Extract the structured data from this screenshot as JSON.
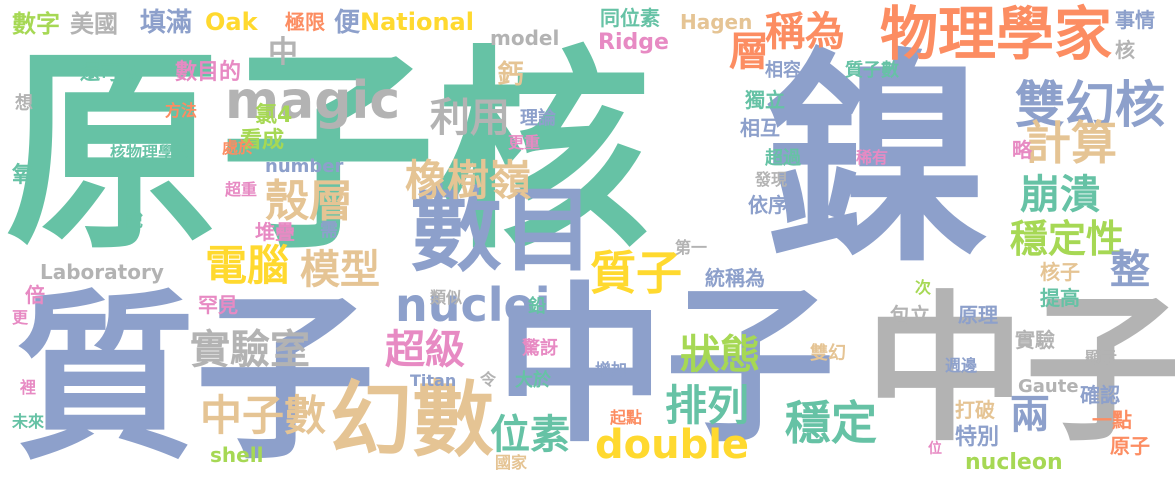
{
  "colors": {
    "green": "#66c2a5",
    "blue": "#8da0cb",
    "orange": "#fc8d62",
    "gray": "#b3b3b3",
    "tan": "#e5c494",
    "yellow": "#ffd92f",
    "pink": "#e78ac3",
    "lime": "#a6d854"
  },
  "words": [
    {
      "text": "原子核",
      "color": "#66c2a5"
    },
    {
      "text": "鎳",
      "color": "#8da0cb"
    },
    {
      "text": "質子",
      "color": "#8da0cb"
    },
    {
      "text": "中子",
      "color": "#8da0cb"
    },
    {
      "text": "中子",
      "color": "#b3b3b3"
    },
    {
      "text": "數目",
      "color": "#8da0cb"
    },
    {
      "text": "幻數",
      "color": "#e5c494"
    },
    {
      "text": "物理學家",
      "color": "#fc8d62"
    },
    {
      "text": "magic",
      "color": "#b3b3b3"
    },
    {
      "text": "雙幻核",
      "color": "#8da0cb"
    },
    {
      "text": "計算",
      "color": "#e5c494"
    },
    {
      "text": "橡樹嶺",
      "color": "#e5c494"
    },
    {
      "text": "利用",
      "color": "#b3b3b3"
    },
    {
      "text": "殼層",
      "color": "#e5c494"
    },
    {
      "text": "電腦",
      "color": "#ffd92f"
    },
    {
      "text": "模型",
      "color": "#e5c494"
    },
    {
      "text": "質子",
      "color": "#ffd92f"
    },
    {
      "text": "nuclei",
      "color": "#8da0cb"
    },
    {
      "text": "超級",
      "color": "#e78ac3"
    },
    {
      "text": "狀態",
      "color": "#a6d854"
    },
    {
      "text": "實驗室",
      "color": "#b3b3b3"
    },
    {
      "text": "中子數",
      "color": "#e5c494"
    },
    {
      "text": "排列",
      "color": "#66c2a5"
    },
    {
      "text": "穩定",
      "color": "#66c2a5"
    },
    {
      "text": "位素",
      "color": "#66c2a5"
    },
    {
      "text": "double",
      "color": "#ffd92f"
    },
    {
      "text": "崩潰",
      "color": "#66c2a5"
    },
    {
      "text": "穩定性",
      "color": "#a6d854"
    },
    {
      "text": "整",
      "color": "#8da0cb"
    },
    {
      "text": "兩",
      "color": "#8da0cb"
    },
    {
      "text": "稱為",
      "color": "#fc8d62"
    },
    {
      "text": "層",
      "color": "#fc8d62"
    },
    {
      "text": "中",
      "color": "#b3b3b3"
    },
    {
      "text": "數字",
      "color": "#a6d854"
    },
    {
      "text": "美國",
      "color": "#b3b3b3"
    },
    {
      "text": "填滿",
      "color": "#8da0cb"
    },
    {
      "text": "Oak",
      "color": "#ffd92f"
    },
    {
      "text": "極限",
      "color": "#fc8d62"
    },
    {
      "text": "便",
      "color": "#8da0cb"
    },
    {
      "text": "National",
      "color": "#ffd92f"
    },
    {
      "text": "model",
      "color": "#b3b3b3"
    },
    {
      "text": "同位素",
      "color": "#66c2a5"
    },
    {
      "text": "Hagen",
      "color": "#e5c494"
    },
    {
      "text": "Ridge",
      "color": "#e78ac3"
    },
    {
      "text": "事情",
      "color": "#8da0cb"
    },
    {
      "text": "核",
      "color": "#b3b3b3"
    },
    {
      "text": "還可以",
      "color": "#66c2a5"
    },
    {
      "text": "數目的",
      "color": "#e78ac3"
    },
    {
      "text": "鈣",
      "color": "#e5c494"
    },
    {
      "text": "相容",
      "color": "#8da0cb"
    },
    {
      "text": "質子數",
      "color": "#66c2a5"
    },
    {
      "text": "想",
      "color": "#b3b3b3"
    },
    {
      "text": "方法",
      "color": "#fc8d62"
    },
    {
      "text": "氯4",
      "color": "#a6d854"
    },
    {
      "text": "看成",
      "color": "#a6d854"
    },
    {
      "text": "理論",
      "color": "#8da0cb"
    },
    {
      "text": "獨立",
      "color": "#66c2a5"
    },
    {
      "text": "略",
      "color": "#e78ac3"
    },
    {
      "text": "核物理學家",
      "color": "#66c2a5"
    },
    {
      "text": "處於",
      "color": "#fc8d62"
    },
    {
      "text": "更重",
      "color": "#e78ac3"
    },
    {
      "text": "相互",
      "color": "#8da0cb"
    },
    {
      "text": "number",
      "color": "#8da0cb"
    },
    {
      "text": "超過",
      "color": "#66c2a5"
    },
    {
      "text": "稀有",
      "color": "#e78ac3"
    },
    {
      "text": "氧",
      "color": "#66c2a5"
    },
    {
      "text": "超重",
      "color": "#e78ac3"
    },
    {
      "text": "發現",
      "color": "#b3b3b3"
    },
    {
      "text": "說",
      "color": "#66c2a5"
    },
    {
      "text": "堆疊",
      "color": "#e78ac3"
    },
    {
      "text": "需",
      "color": "#8da0cb"
    },
    {
      "text": "依序",
      "color": "#8da0cb"
    },
    {
      "text": "第一",
      "color": "#b3b3b3"
    },
    {
      "text": "Laboratory",
      "color": "#b3b3b3"
    },
    {
      "text": "統稱為",
      "color": "#8da0cb"
    },
    {
      "text": "核子",
      "color": "#e5c494"
    },
    {
      "text": "倍",
      "color": "#e78ac3"
    },
    {
      "text": "罕見",
      "color": "#e78ac3"
    },
    {
      "text": "類似",
      "color": "#b3b3b3"
    },
    {
      "text": "鉛",
      "color": "#66c2a5"
    },
    {
      "text": "提高",
      "color": "#66c2a5"
    },
    {
      "text": "次",
      "color": "#a6d854"
    },
    {
      "text": "包立",
      "color": "#b3b3b3"
    },
    {
      "text": "原理",
      "color": "#8da0cb"
    },
    {
      "text": "更",
      "color": "#e78ac3"
    },
    {
      "text": "驚訝",
      "color": "#e78ac3"
    },
    {
      "text": "增加",
      "color": "#8da0cb"
    },
    {
      "text": "雙幻",
      "color": "#e5c494"
    },
    {
      "text": "實驗",
      "color": "#b3b3b3"
    },
    {
      "text": "顯示",
      "color": "#b3b3b3"
    },
    {
      "text": "週邊",
      "color": "#8da0cb"
    },
    {
      "text": "Titan",
      "color": "#8da0cb"
    },
    {
      "text": "令",
      "color": "#b3b3b3"
    },
    {
      "text": "大於",
      "color": "#66c2a5"
    },
    {
      "text": "Gaute",
      "color": "#b3b3b3"
    },
    {
      "text": "裡",
      "color": "#e78ac3"
    },
    {
      "text": "確認",
      "color": "#8da0cb"
    },
    {
      "text": "打破",
      "color": "#e5c494"
    },
    {
      "text": "一點",
      "color": "#fc8d62"
    },
    {
      "text": "未來",
      "color": "#66c2a5"
    },
    {
      "text": "特別",
      "color": "#8da0cb"
    },
    {
      "text": "起點",
      "color": "#fc8d62"
    },
    {
      "text": "shell",
      "color": "#a6d854"
    },
    {
      "text": "國家",
      "color": "#e5c494"
    },
    {
      "text": "nucleon",
      "color": "#a6d854"
    },
    {
      "text": "位",
      "color": "#e78ac3"
    },
    {
      "text": "原子",
      "color": "#fc8d62"
    }
  ]
}
